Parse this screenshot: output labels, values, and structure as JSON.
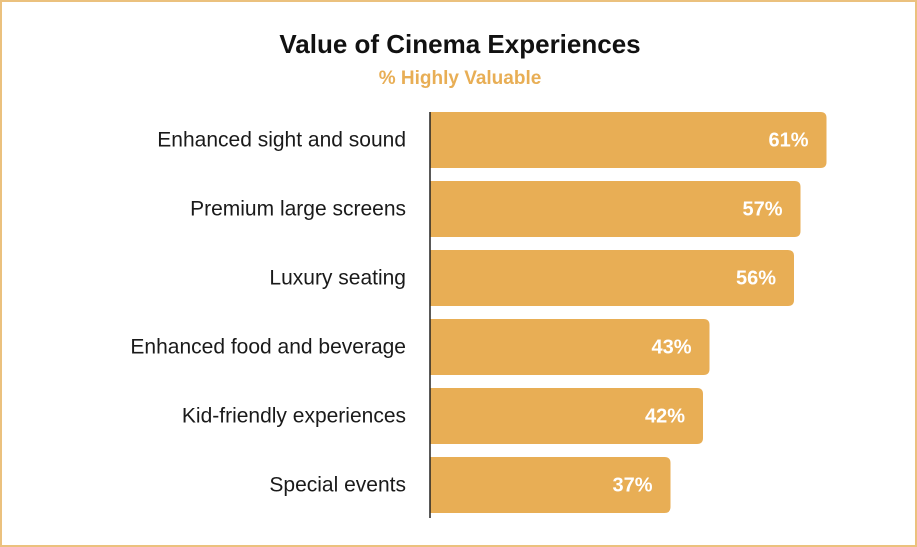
{
  "chart_data": {
    "type": "bar",
    "orientation": "horizontal",
    "title": "Value of Cinema Experiences",
    "subtitle": "% Highly Valuable",
    "categories": [
      "Enhanced sight and sound",
      "Premium large screens",
      "Luxury seating",
      "Enhanced food and beverage",
      "Kid-friendly experiences",
      "Special events"
    ],
    "values": [
      61,
      57,
      56,
      43,
      42,
      37
    ],
    "value_labels": [
      "61%",
      "57%",
      "56%",
      "43%",
      "42%",
      "37%"
    ],
    "color": "#E8AE55"
  }
}
